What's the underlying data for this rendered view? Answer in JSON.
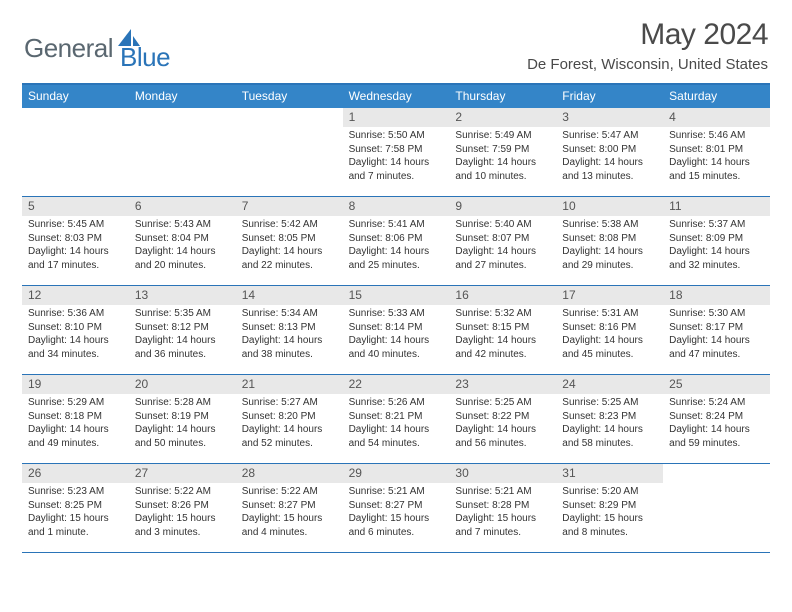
{
  "brand": {
    "part1": "General",
    "part2": "Blue"
  },
  "title": "May 2024",
  "location": "De Forest, Wisconsin, United States",
  "style": {
    "accent": "#3485c8",
    "border": "#2a74b8",
    "daynum_bg": "#e8e8e8",
    "text": "#333333",
    "title_color": "#4a4a4a",
    "logo_gray": "#5a6770",
    "logo_blue": "#2a74b8"
  },
  "days_of_week": [
    "Sunday",
    "Monday",
    "Tuesday",
    "Wednesday",
    "Thursday",
    "Friday",
    "Saturday"
  ],
  "weeks": [
    [
      {
        "n": "",
        "sr": "",
        "ss": "",
        "dl": ""
      },
      {
        "n": "",
        "sr": "",
        "ss": "",
        "dl": ""
      },
      {
        "n": "",
        "sr": "",
        "ss": "",
        "dl": ""
      },
      {
        "n": "1",
        "sr": "Sunrise: 5:50 AM",
        "ss": "Sunset: 7:58 PM",
        "dl": "Daylight: 14 hours and 7 minutes."
      },
      {
        "n": "2",
        "sr": "Sunrise: 5:49 AM",
        "ss": "Sunset: 7:59 PM",
        "dl": "Daylight: 14 hours and 10 minutes."
      },
      {
        "n": "3",
        "sr": "Sunrise: 5:47 AM",
        "ss": "Sunset: 8:00 PM",
        "dl": "Daylight: 14 hours and 13 minutes."
      },
      {
        "n": "4",
        "sr": "Sunrise: 5:46 AM",
        "ss": "Sunset: 8:01 PM",
        "dl": "Daylight: 14 hours and 15 minutes."
      }
    ],
    [
      {
        "n": "5",
        "sr": "Sunrise: 5:45 AM",
        "ss": "Sunset: 8:03 PM",
        "dl": "Daylight: 14 hours and 17 minutes."
      },
      {
        "n": "6",
        "sr": "Sunrise: 5:43 AM",
        "ss": "Sunset: 8:04 PM",
        "dl": "Daylight: 14 hours and 20 minutes."
      },
      {
        "n": "7",
        "sr": "Sunrise: 5:42 AM",
        "ss": "Sunset: 8:05 PM",
        "dl": "Daylight: 14 hours and 22 minutes."
      },
      {
        "n": "8",
        "sr": "Sunrise: 5:41 AM",
        "ss": "Sunset: 8:06 PM",
        "dl": "Daylight: 14 hours and 25 minutes."
      },
      {
        "n": "9",
        "sr": "Sunrise: 5:40 AM",
        "ss": "Sunset: 8:07 PM",
        "dl": "Daylight: 14 hours and 27 minutes."
      },
      {
        "n": "10",
        "sr": "Sunrise: 5:38 AM",
        "ss": "Sunset: 8:08 PM",
        "dl": "Daylight: 14 hours and 29 minutes."
      },
      {
        "n": "11",
        "sr": "Sunrise: 5:37 AM",
        "ss": "Sunset: 8:09 PM",
        "dl": "Daylight: 14 hours and 32 minutes."
      }
    ],
    [
      {
        "n": "12",
        "sr": "Sunrise: 5:36 AM",
        "ss": "Sunset: 8:10 PM",
        "dl": "Daylight: 14 hours and 34 minutes."
      },
      {
        "n": "13",
        "sr": "Sunrise: 5:35 AM",
        "ss": "Sunset: 8:12 PM",
        "dl": "Daylight: 14 hours and 36 minutes."
      },
      {
        "n": "14",
        "sr": "Sunrise: 5:34 AM",
        "ss": "Sunset: 8:13 PM",
        "dl": "Daylight: 14 hours and 38 minutes."
      },
      {
        "n": "15",
        "sr": "Sunrise: 5:33 AM",
        "ss": "Sunset: 8:14 PM",
        "dl": "Daylight: 14 hours and 40 minutes."
      },
      {
        "n": "16",
        "sr": "Sunrise: 5:32 AM",
        "ss": "Sunset: 8:15 PM",
        "dl": "Daylight: 14 hours and 42 minutes."
      },
      {
        "n": "17",
        "sr": "Sunrise: 5:31 AM",
        "ss": "Sunset: 8:16 PM",
        "dl": "Daylight: 14 hours and 45 minutes."
      },
      {
        "n": "18",
        "sr": "Sunrise: 5:30 AM",
        "ss": "Sunset: 8:17 PM",
        "dl": "Daylight: 14 hours and 47 minutes."
      }
    ],
    [
      {
        "n": "19",
        "sr": "Sunrise: 5:29 AM",
        "ss": "Sunset: 8:18 PM",
        "dl": "Daylight: 14 hours and 49 minutes."
      },
      {
        "n": "20",
        "sr": "Sunrise: 5:28 AM",
        "ss": "Sunset: 8:19 PM",
        "dl": "Daylight: 14 hours and 50 minutes."
      },
      {
        "n": "21",
        "sr": "Sunrise: 5:27 AM",
        "ss": "Sunset: 8:20 PM",
        "dl": "Daylight: 14 hours and 52 minutes."
      },
      {
        "n": "22",
        "sr": "Sunrise: 5:26 AM",
        "ss": "Sunset: 8:21 PM",
        "dl": "Daylight: 14 hours and 54 minutes."
      },
      {
        "n": "23",
        "sr": "Sunrise: 5:25 AM",
        "ss": "Sunset: 8:22 PM",
        "dl": "Daylight: 14 hours and 56 minutes."
      },
      {
        "n": "24",
        "sr": "Sunrise: 5:25 AM",
        "ss": "Sunset: 8:23 PM",
        "dl": "Daylight: 14 hours and 58 minutes."
      },
      {
        "n": "25",
        "sr": "Sunrise: 5:24 AM",
        "ss": "Sunset: 8:24 PM",
        "dl": "Daylight: 14 hours and 59 minutes."
      }
    ],
    [
      {
        "n": "26",
        "sr": "Sunrise: 5:23 AM",
        "ss": "Sunset: 8:25 PM",
        "dl": "Daylight: 15 hours and 1 minute."
      },
      {
        "n": "27",
        "sr": "Sunrise: 5:22 AM",
        "ss": "Sunset: 8:26 PM",
        "dl": "Daylight: 15 hours and 3 minutes."
      },
      {
        "n": "28",
        "sr": "Sunrise: 5:22 AM",
        "ss": "Sunset: 8:27 PM",
        "dl": "Daylight: 15 hours and 4 minutes."
      },
      {
        "n": "29",
        "sr": "Sunrise: 5:21 AM",
        "ss": "Sunset: 8:27 PM",
        "dl": "Daylight: 15 hours and 6 minutes."
      },
      {
        "n": "30",
        "sr": "Sunrise: 5:21 AM",
        "ss": "Sunset: 8:28 PM",
        "dl": "Daylight: 15 hours and 7 minutes."
      },
      {
        "n": "31",
        "sr": "Sunrise: 5:20 AM",
        "ss": "Sunset: 8:29 PM",
        "dl": "Daylight: 15 hours and 8 minutes."
      },
      {
        "n": "",
        "sr": "",
        "ss": "",
        "dl": ""
      }
    ]
  ]
}
